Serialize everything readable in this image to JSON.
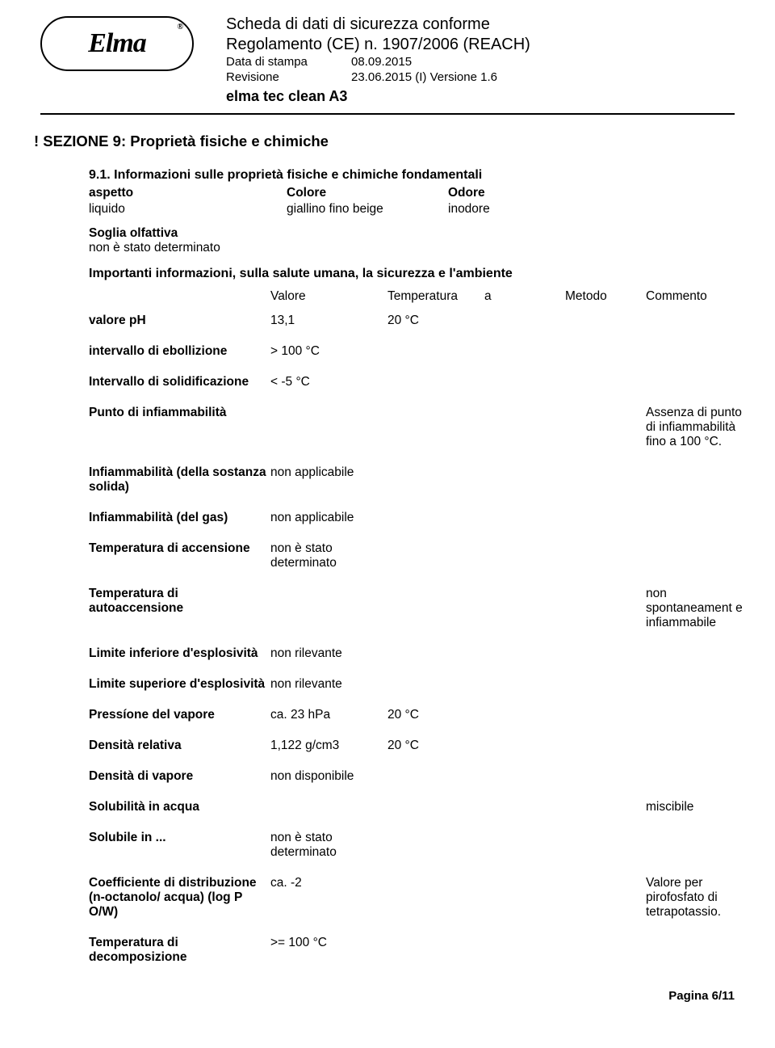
{
  "header": {
    "logo_text": "Elma",
    "title_line1": "Scheda di dati di sicurezza conforme",
    "title_line2": "Regolamento (CE) n. 1907/2006 (REACH)",
    "print_date_label": "Data di stampa",
    "print_date_value": "08.09.2015",
    "revision_label": "Revisione",
    "revision_value": "23.06.2015   (I) Versione 1.6",
    "product_name": "elma tec clean A3"
  },
  "section": {
    "title": "! SEZIONE 9: Proprietà fisiche e chimiche",
    "sub91": "9.1. Informazioni sulle proprietà fisiche e chimiche fondamentali",
    "aspetto_label": "aspetto",
    "aspetto_value": "liquido",
    "colore_label": "Colore",
    "colore_value": "giallino fino beige",
    "odore_label": "Odore",
    "odore_value": "inodore",
    "soglia_label": "Soglia olfattiva",
    "soglia_value": "non è stato determinato",
    "importanti": "Importanti informazioni, sulla salute umana, la sicurezza e l'ambiente"
  },
  "table_header": {
    "valore": "Valore",
    "temperatura": "Temperatura",
    "a": "a",
    "metodo": "Metodo",
    "commento": "Commento"
  },
  "rows": {
    "ph": {
      "label": "valore pH",
      "value": "13,1",
      "temp": "20 °C"
    },
    "ebollizione": {
      "label": "intervallo di ebollizione",
      "value": "> 100 °C"
    },
    "solidificazione": {
      "label": "Intervallo di solidificazione",
      "value": "< -5 °C"
    },
    "infiammabilita": {
      "label": "Punto di infiammabilità",
      "commento": "Assenza di punto di infiammabilità fino a 100 °C."
    },
    "inf_solida": {
      "label": "Infiammabilità (della sostanza solida)",
      "value": "non applicabile"
    },
    "inf_gas": {
      "label": "Infiammabilità (del gas)",
      "value": "non applicabile"
    },
    "temp_accensione": {
      "label": "Temperatura di accensione",
      "value": "non è stato determinato"
    },
    "temp_auto": {
      "label": "Temperatura di autoaccensione",
      "commento": "non spontaneament e infiammabile"
    },
    "lim_inf": {
      "label": "Limite inferiore d'esplosività",
      "value": "non rilevante"
    },
    "lim_sup": {
      "label": "Limite superiore d'esplosività",
      "value": "non rilevante"
    },
    "pressione": {
      "label": "Pressíone del vapore",
      "value": "ca. 23 hPa",
      "temp": "20 °C"
    },
    "densita_rel": {
      "label": "Densità relativa",
      "value": "1,122 g/cm3",
      "temp": "20 °C"
    },
    "densita_vap": {
      "label": "Densità di vapore",
      "value": "non disponibile"
    },
    "solub_acqua": {
      "label": "Solubilità in acqua",
      "commento": "miscibile"
    },
    "solub_in": {
      "label": "Solubile in ...",
      "value": "non è stato determinato"
    },
    "coeff": {
      "label": "Coefficiente di distribuzione (n-octanolo/ acqua) (log P O/W)",
      "value": "ca. -2",
      "commento": "Valore per pirofosfato di tetrapotassio."
    },
    "temp_decomp": {
      "label": "Temperatura di decomposizione",
      "value": ">= 100 °C"
    }
  },
  "footer": {
    "page": "Pagina 6/11"
  }
}
